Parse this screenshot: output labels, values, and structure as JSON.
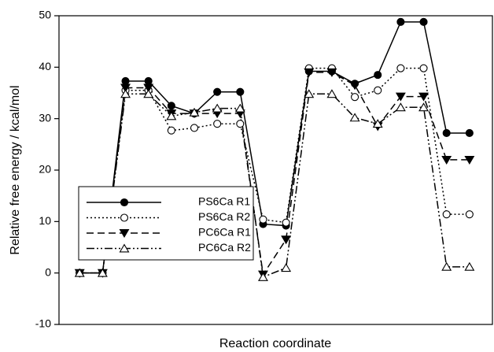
{
  "chart_data": {
    "type": "line",
    "x": [
      1,
      2,
      3,
      4,
      5,
      6,
      7,
      8,
      9,
      10,
      11,
      12,
      13,
      14,
      15,
      16,
      17,
      18
    ],
    "xlim": [
      0.1,
      19
    ],
    "ylim": [
      -10,
      50
    ],
    "yticks": [
      -10,
      0,
      10,
      20,
      30,
      40,
      50
    ],
    "xlabel": "Reaction coordinate",
    "ylabel": "Relative free energy / kcal/mol",
    "legend": "lower left",
    "series": [
      {
        "name": "PS6Ca R1",
        "color": "#000000",
        "line_style": "solid",
        "marker": "filled-circle",
        "values": [
          0,
          0,
          37.3,
          37.3,
          32.5,
          31,
          35.2,
          35.2,
          9.5,
          9.2,
          39.2,
          39.2,
          36.8,
          38.5,
          48.8,
          48.8,
          27.2,
          27.2
        ]
      },
      {
        "name": "PS6Ca R2",
        "color": "#000000",
        "line_style": "dotted",
        "marker": "open-circle",
        "values": [
          0,
          0,
          35.5,
          35.5,
          27.7,
          28.2,
          29,
          29,
          10.4,
          9.8,
          39.8,
          39.8,
          34.2,
          35.5,
          39.8,
          39.8,
          11.4,
          11.4
        ]
      },
      {
        "name": "PC6Ca R1",
        "color": "#000000",
        "line_style": "dashed",
        "marker": "filled-triangle-down",
        "values": [
          0,
          0,
          36,
          36,
          31,
          31,
          31,
          31,
          -0.3,
          6.5,
          39,
          39,
          36.5,
          28.5,
          34.3,
          34.3,
          22,
          22
        ]
      },
      {
        "name": "PC6Ca R2",
        "color": "#000000",
        "line_style": "dashdotdot",
        "marker": "open-triangle-up",
        "values": [
          0,
          0,
          34.8,
          34.8,
          30.5,
          31.2,
          32,
          32,
          -0.8,
          1,
          34.8,
          34.8,
          30.2,
          29,
          32.2,
          32.2,
          1.2,
          1.2
        ]
      }
    ]
  }
}
